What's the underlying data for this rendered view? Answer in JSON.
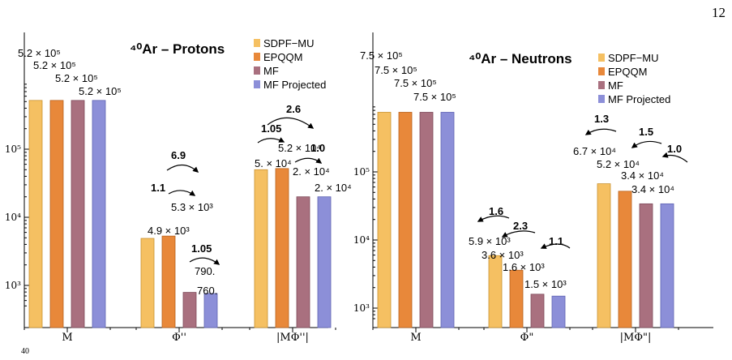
{
  "page_number": "12",
  "caption_fragment": "40",
  "colors": {
    "SDPF-MU": "#f5c062",
    "EPQQM": "#e8883a",
    "MF": "#a9707f",
    "MF Projected": "#8c8fd8"
  },
  "chart_data": [
    {
      "type": "bar",
      "title": "⁴⁰Ar – Protons",
      "yscale": "log",
      "ylim": [
        500,
        1000000
      ],
      "yticks": [
        1000,
        10000,
        100000
      ],
      "ytick_labels": [
        "10³",
        "10⁴",
        "10⁵"
      ],
      "categories": [
        "M",
        "Φ''",
        "|MΦ''|"
      ],
      "legend_position": "top-right",
      "series": [
        {
          "name": "SDPF−MU",
          "values": [
            520000,
            4900,
            50000
          ],
          "labels": [
            "5.2 × 10⁵",
            "4.9 × 10³",
            "5. × 10⁴"
          ]
        },
        {
          "name": "EPQQM",
          "values": [
            520000,
            5300,
            52000
          ],
          "labels": [
            "5.2 × 10⁵",
            "5.3 × 10³",
            "5.2 × 10⁴"
          ]
        },
        {
          "name": "MF",
          "values": [
            520000,
            790,
            20000
          ],
          "labels": [
            "5.2 × 10⁵",
            "790.",
            "2. × 10⁴"
          ]
        },
        {
          "name": "MF Projected",
          "values": [
            520000,
            760,
            20000
          ],
          "labels": [
            "5.2 × 10⁵",
            "760.",
            "2. × 10⁴"
          ]
        }
      ],
      "ratio_annotations": [
        "1.1",
        "6.9",
        "1.05",
        "1.05",
        "2.6",
        "1.0"
      ]
    },
    {
      "type": "bar",
      "title": "⁴⁰Ar – Neutrons",
      "yscale": "log",
      "ylim": [
        700,
        1000000
      ],
      "yticks": [
        1000,
        10000,
        100000
      ],
      "ytick_labels": [
        "10³",
        "10⁴",
        "10⁵"
      ],
      "categories": [
        "M",
        "Φ\"",
        "|MΦ\"|"
      ],
      "legend_position": "top-right",
      "series": [
        {
          "name": "SDPF−MU",
          "values": [
            750000,
            5900,
            67000
          ],
          "labels": [
            "7.5 × 10⁵",
            "5.9 × 10³",
            "6.7 × 10⁴"
          ]
        },
        {
          "name": "EPQQM",
          "values": [
            750000,
            3600,
            52000
          ],
          "labels": [
            "7.5 × 10⁵",
            "3.6 × 10³",
            "5.2 × 10⁴"
          ]
        },
        {
          "name": "MF",
          "values": [
            750000,
            1600,
            34000
          ],
          "labels": [
            "7.5 × 10⁵",
            "1.6 × 10³",
            "3.4 × 10⁴"
          ]
        },
        {
          "name": "MF Projected",
          "values": [
            750000,
            1500,
            34000
          ],
          "labels": [
            "7.5 × 10⁵",
            "1.5 × 10³",
            "3.4 × 10⁴"
          ]
        }
      ],
      "ratio_annotations": [
        "1.6",
        "2.3",
        "1.1",
        "1.3",
        "1.5",
        "1.0"
      ]
    }
  ]
}
